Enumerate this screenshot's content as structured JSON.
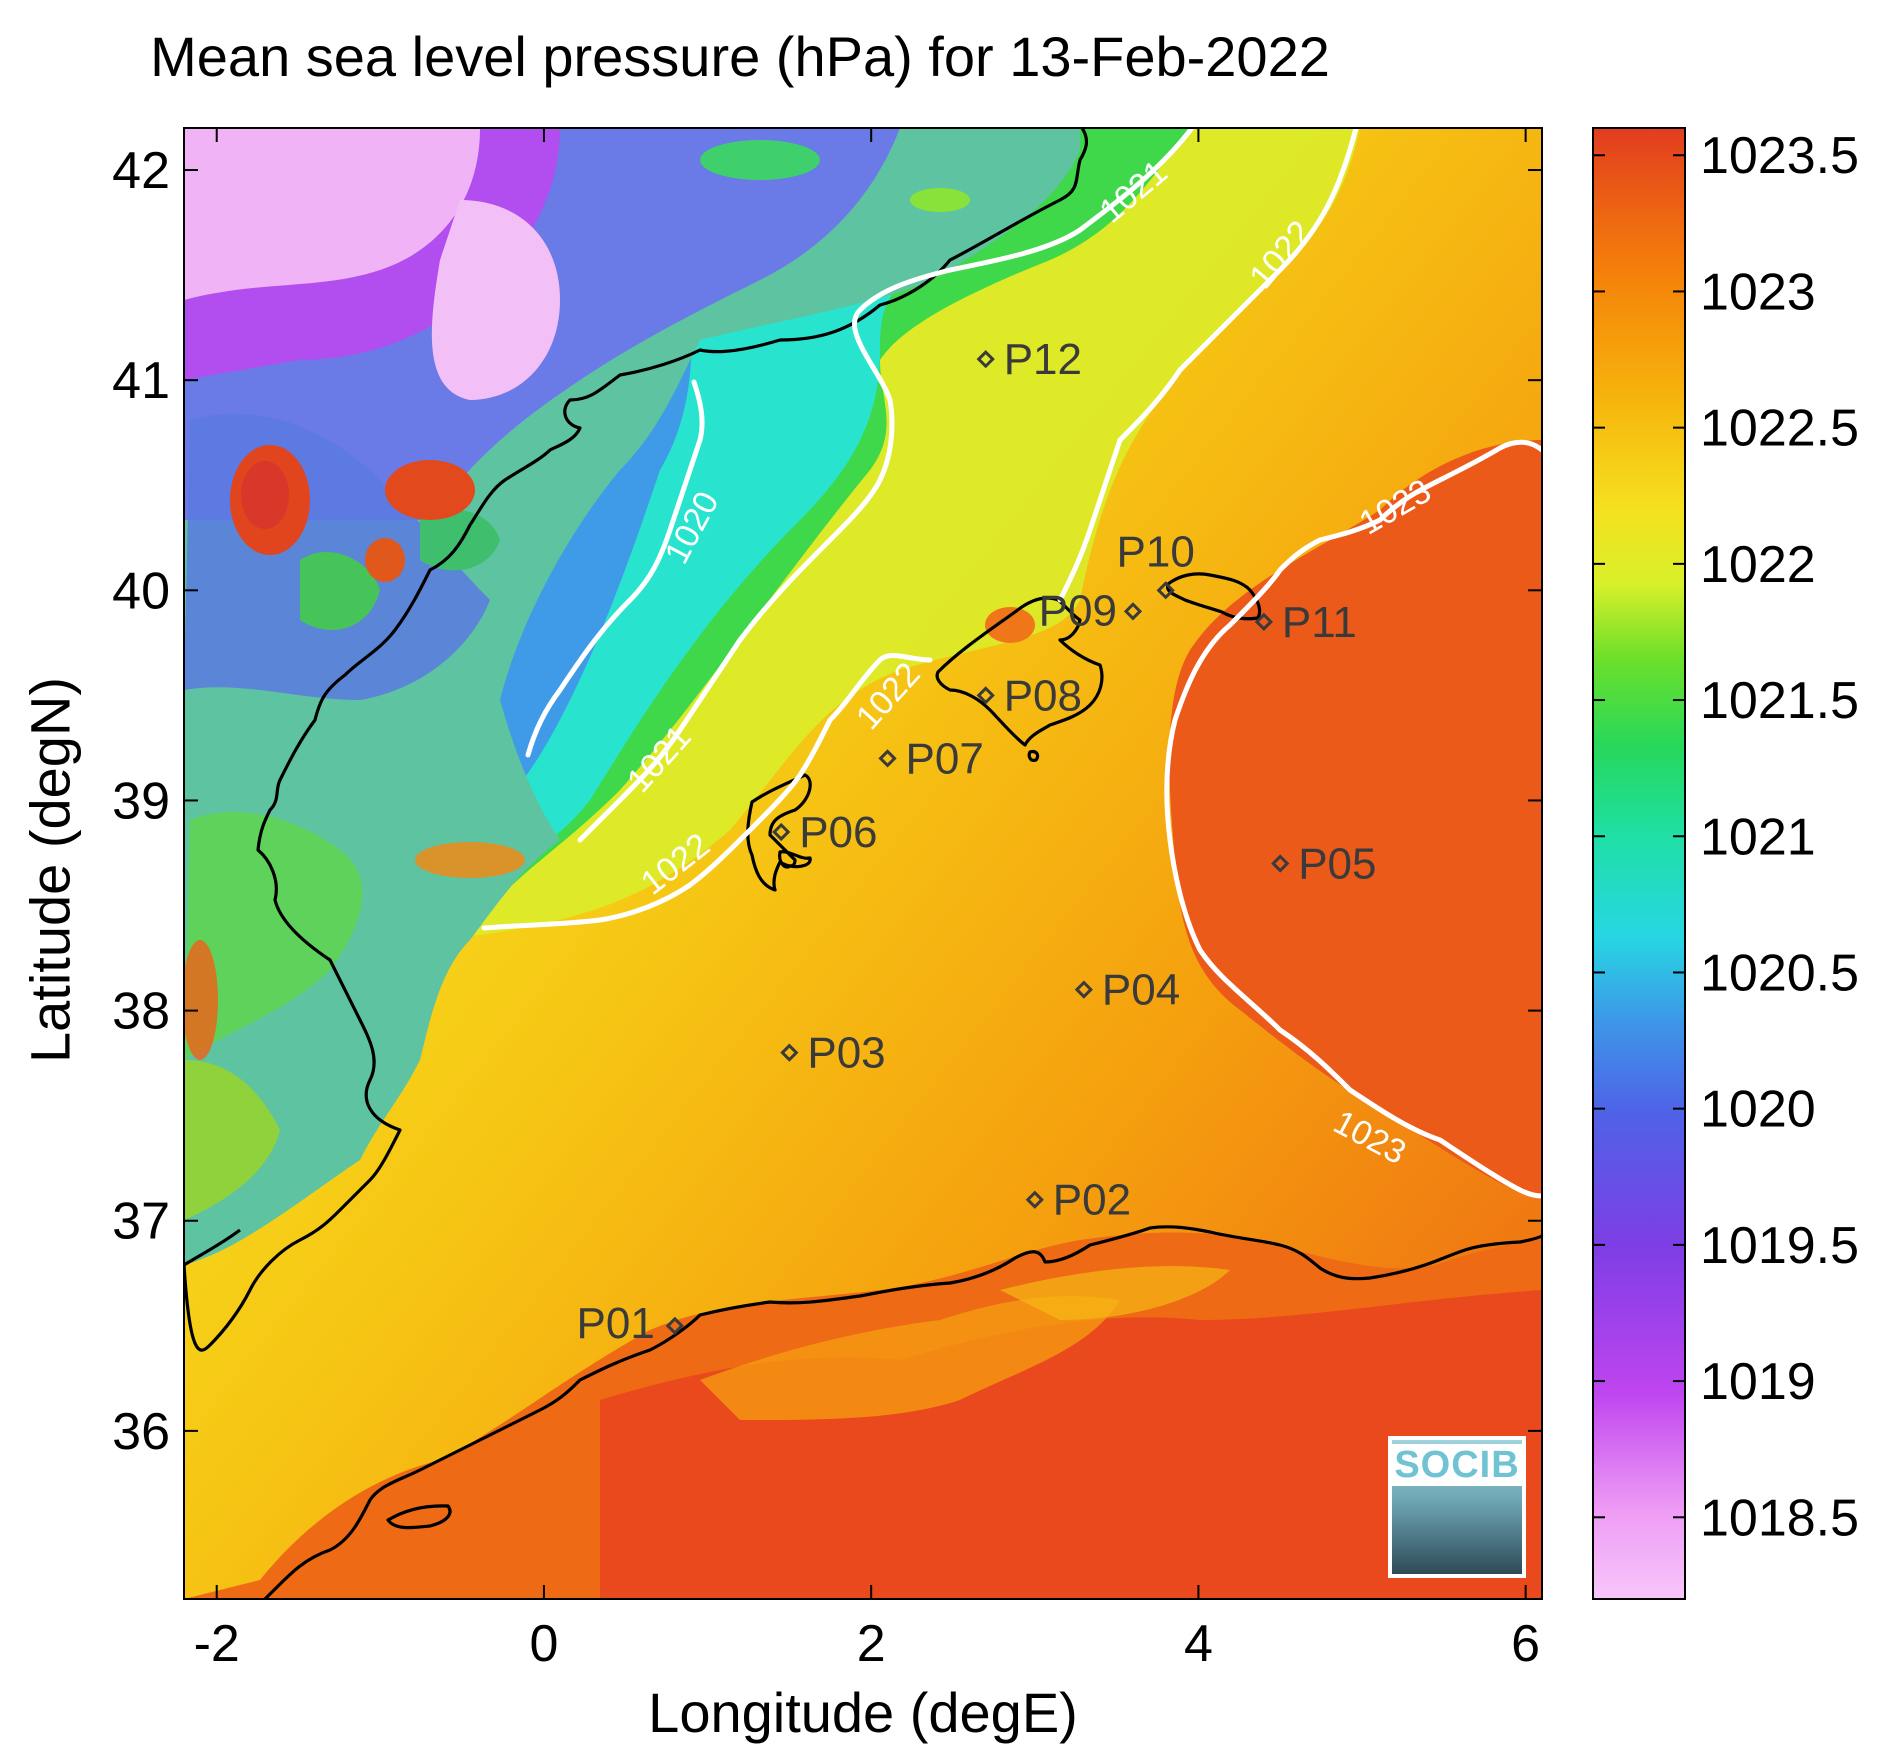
{
  "title": "Mean sea level pressure (hPa) for 13-Feb-2022",
  "xlabel": "Longitude (degE)",
  "ylabel": "Latitude (degN)",
  "logo_text": "SOCIB",
  "x_ticks": [
    -2,
    0,
    2,
    4,
    6
  ],
  "y_ticks": [
    36,
    37,
    38,
    39,
    40,
    41,
    42
  ],
  "xlim": [
    -2.2,
    6.1
  ],
  "ylim": [
    35.2,
    42.2
  ],
  "colorbar": {
    "ticks": [
      "1018.5",
      "1019",
      "1019.5",
      "1020",
      "1020.5",
      "1021",
      "1021.5",
      "1022",
      "1022.5",
      "1023",
      "1023.5"
    ],
    "range": [
      1018.2,
      1023.6
    ]
  },
  "chart_data": {
    "type": "heatmap",
    "title": "Mean sea level pressure (hPa) for 13-Feb-2022",
    "xlabel": "Longitude (degE)",
    "ylabel": "Latitude (degN)",
    "grid": false,
    "contour_levels": [
      1020,
      1021,
      1022,
      1023
    ],
    "contour_labels": [
      {
        "text": "1020",
        "lon": 0.9,
        "lat": 40.3
      },
      {
        "text": "1021",
        "lon": 3.6,
        "lat": 41.9
      },
      {
        "text": "1021",
        "lon": 0.7,
        "lat": 39.2
      },
      {
        "text": "1022",
        "lon": 4.5,
        "lat": 41.6
      },
      {
        "text": "1022",
        "lon": 2.1,
        "lat": 39.5
      },
      {
        "text": "1022",
        "lon": 0.8,
        "lat": 38.7
      },
      {
        "text": "1023",
        "lon": 5.2,
        "lat": 40.4
      },
      {
        "text": "1023",
        "lon": 5.05,
        "lat": 37.4
      }
    ],
    "stations": [
      {
        "name": "P01",
        "lon": 0.8,
        "lat": 36.5
      },
      {
        "name": "P02",
        "lon": 3.0,
        "lat": 37.1
      },
      {
        "name": "P03",
        "lon": 1.5,
        "lat": 37.8
      },
      {
        "name": "P04",
        "lon": 3.3,
        "lat": 38.1
      },
      {
        "name": "P05",
        "lon": 4.5,
        "lat": 38.7
      },
      {
        "name": "P06",
        "lon": 1.45,
        "lat": 38.85
      },
      {
        "name": "P07",
        "lon": 2.1,
        "lat": 39.2
      },
      {
        "name": "P08",
        "lon": 2.7,
        "lat": 39.5
      },
      {
        "name": "P09",
        "lon": 3.6,
        "lat": 39.9
      },
      {
        "name": "P10",
        "lon": 3.8,
        "lat": 40.0
      },
      {
        "name": "P11",
        "lon": 4.4,
        "lat": 39.85
      },
      {
        "name": "P12",
        "lon": 2.7,
        "lat": 41.1
      }
    ],
    "colors": {
      "1018.5": "#f3b6f6",
      "1019": "#b33cf0",
      "1019.5": "#7442e3",
      "1020": "#3a8fe6",
      "1020.5": "#1ce8d8",
      "1021": "#24d78a",
      "1021.5": "#33d23a",
      "1022": "#d4f02b",
      "1022.5": "#f6d418",
      "1023": "#f5880a",
      "1023.5": "#e4461e"
    }
  }
}
